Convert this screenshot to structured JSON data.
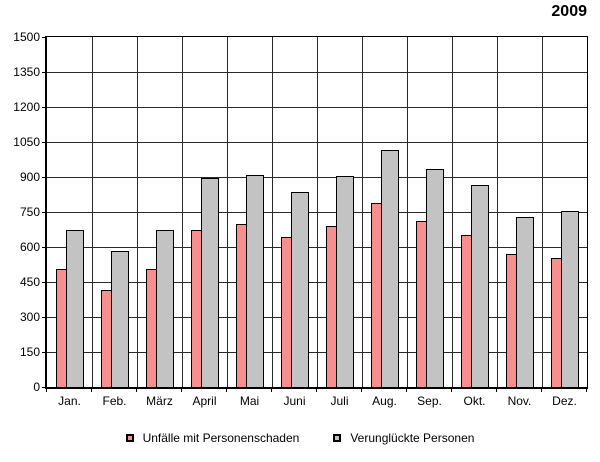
{
  "title": "2009",
  "chart_data": {
    "type": "bar",
    "title": "2009",
    "categories": [
      "Jan.",
      "Feb.",
      "März",
      "April",
      "Mai",
      "Juni",
      "Juli",
      "Aug.",
      "Sep.",
      "Okt.",
      "Nov.",
      "Dez."
    ],
    "series": [
      {
        "name": "Unfälle mit Personenschaden",
        "color": "#f78f8f",
        "values": [
          505,
          415,
          505,
          675,
          700,
          645,
          690,
          790,
          710,
          650,
          570,
          555
        ]
      },
      {
        "name": "Verunglückte Personen",
        "color": "#c3c3c3",
        "values": [
          675,
          585,
          675,
          895,
          910,
          835,
          905,
          1015,
          935,
          865,
          730,
          755
        ]
      }
    ],
    "xlabel": "",
    "ylabel": "",
    "ylim": [
      0,
      1500
    ],
    "yticks": [
      0,
      150,
      300,
      450,
      600,
      750,
      900,
      1050,
      1200,
      1350,
      1500
    ],
    "grid": "both",
    "legend_position": "bottom",
    "bar_border_color": "#000000",
    "background_color": "#ffffff"
  }
}
